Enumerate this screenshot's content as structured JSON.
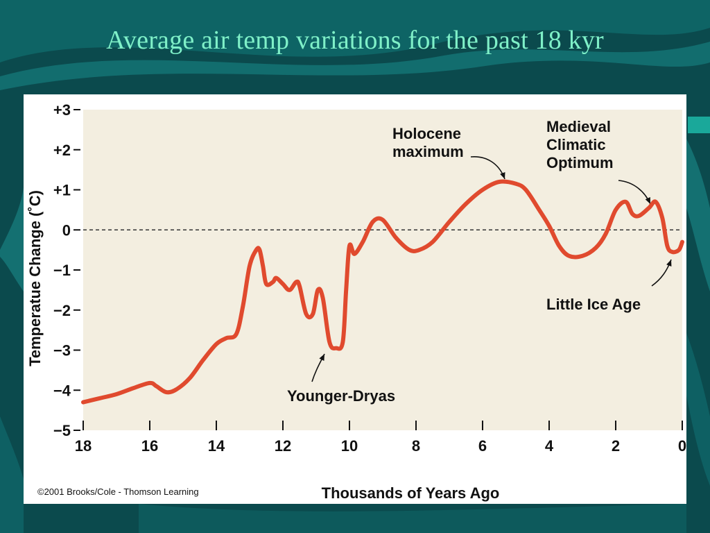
{
  "slide": {
    "title": "Average air temp variations for the past 18 kyr"
  },
  "colors": {
    "background": "#0b4a4d",
    "title": "#7ff0c8",
    "plot_bg": "#f3eee0",
    "series": "#e04a2e"
  },
  "chart_data": {
    "type": "line",
    "title": "",
    "xlabel": "Thousands of Years Ago",
    "ylabel": "Temperatue Change (˚C)",
    "xlim": [
      18,
      0
    ],
    "ylim": [
      -5,
      3
    ],
    "x_reversed": true,
    "x_ticks": [
      "18",
      "16",
      "14",
      "12",
      "10",
      "8",
      "6",
      "4",
      "2",
      "0"
    ],
    "y_ticks": [
      "+3",
      "+2",
      "+1",
      "0",
      "−1",
      "−2",
      "−3",
      "−4",
      "−5"
    ],
    "y_tick_values": [
      3,
      2,
      1,
      0,
      -1,
      -2,
      -3,
      -4,
      -5
    ],
    "x_tick_values": [
      18,
      16,
      14,
      12,
      10,
      8,
      6,
      4,
      2,
      0
    ],
    "reference_line": 0,
    "grid": false,
    "series": [
      {
        "values": [
          [
            18.0,
            -4.3
          ],
          [
            17.5,
            -4.2
          ],
          [
            17.0,
            -4.1
          ],
          [
            16.5,
            -3.95
          ],
          [
            16.0,
            -3.82
          ],
          [
            15.8,
            -3.9
          ],
          [
            15.5,
            -4.05
          ],
          [
            15.2,
            -3.98
          ],
          [
            14.8,
            -3.7
          ],
          [
            14.4,
            -3.25
          ],
          [
            14.0,
            -2.85
          ],
          [
            13.7,
            -2.7
          ],
          [
            13.4,
            -2.6
          ],
          [
            13.2,
            -1.9
          ],
          [
            13.0,
            -0.9
          ],
          [
            12.8,
            -0.5
          ],
          [
            12.7,
            -0.5
          ],
          [
            12.6,
            -0.9
          ],
          [
            12.5,
            -1.35
          ],
          [
            12.3,
            -1.3
          ],
          [
            12.2,
            -1.2
          ],
          [
            12.0,
            -1.35
          ],
          [
            11.8,
            -1.5
          ],
          [
            11.6,
            -1.3
          ],
          [
            11.5,
            -1.4
          ],
          [
            11.3,
            -2.1
          ],
          [
            11.1,
            -2.1
          ],
          [
            10.95,
            -1.5
          ],
          [
            10.8,
            -1.7
          ],
          [
            10.6,
            -2.8
          ],
          [
            10.4,
            -2.95
          ],
          [
            10.2,
            -2.8
          ],
          [
            10.1,
            -1.5
          ],
          [
            10.0,
            -0.4
          ],
          [
            9.85,
            -0.6
          ],
          [
            9.6,
            -0.3
          ],
          [
            9.3,
            0.2
          ],
          [
            9.0,
            0.25
          ],
          [
            8.6,
            -0.2
          ],
          [
            8.2,
            -0.5
          ],
          [
            7.9,
            -0.5
          ],
          [
            7.5,
            -0.3
          ],
          [
            7.0,
            0.2
          ],
          [
            6.5,
            0.65
          ],
          [
            6.0,
            1.0
          ],
          [
            5.5,
            1.2
          ],
          [
            5.0,
            1.15
          ],
          [
            4.7,
            1.0
          ],
          [
            4.3,
            0.5
          ],
          [
            4.0,
            0.1
          ],
          [
            3.7,
            -0.4
          ],
          [
            3.4,
            -0.65
          ],
          [
            3.0,
            -0.65
          ],
          [
            2.6,
            -0.45
          ],
          [
            2.3,
            -0.1
          ],
          [
            2.0,
            0.5
          ],
          [
            1.7,
            0.7
          ],
          [
            1.5,
            0.4
          ],
          [
            1.3,
            0.35
          ],
          [
            1.0,
            0.55
          ],
          [
            0.8,
            0.7
          ],
          [
            0.6,
            0.3
          ],
          [
            0.45,
            -0.4
          ],
          [
            0.3,
            -0.55
          ],
          [
            0.1,
            -0.5
          ],
          [
            0.0,
            -0.3
          ]
        ]
      }
    ],
    "annotations": [
      {
        "lines": [
          "Holocene",
          "maximum"
        ],
        "x": 5.4,
        "y": 1.2
      },
      {
        "lines": [
          "Medieval",
          "Climatic",
          "Optimum"
        ],
        "x": 0.9,
        "y": 0.72
      },
      {
        "lines": [
          "Younger-Dryas"
        ],
        "x": 10.65,
        "y": -2.98
      },
      {
        "lines": [
          "Little Ice Age"
        ],
        "x": 0.35,
        "y": -0.6
      }
    ],
    "credit": "©2001 Brooks/Cole - Thomson Learning"
  }
}
